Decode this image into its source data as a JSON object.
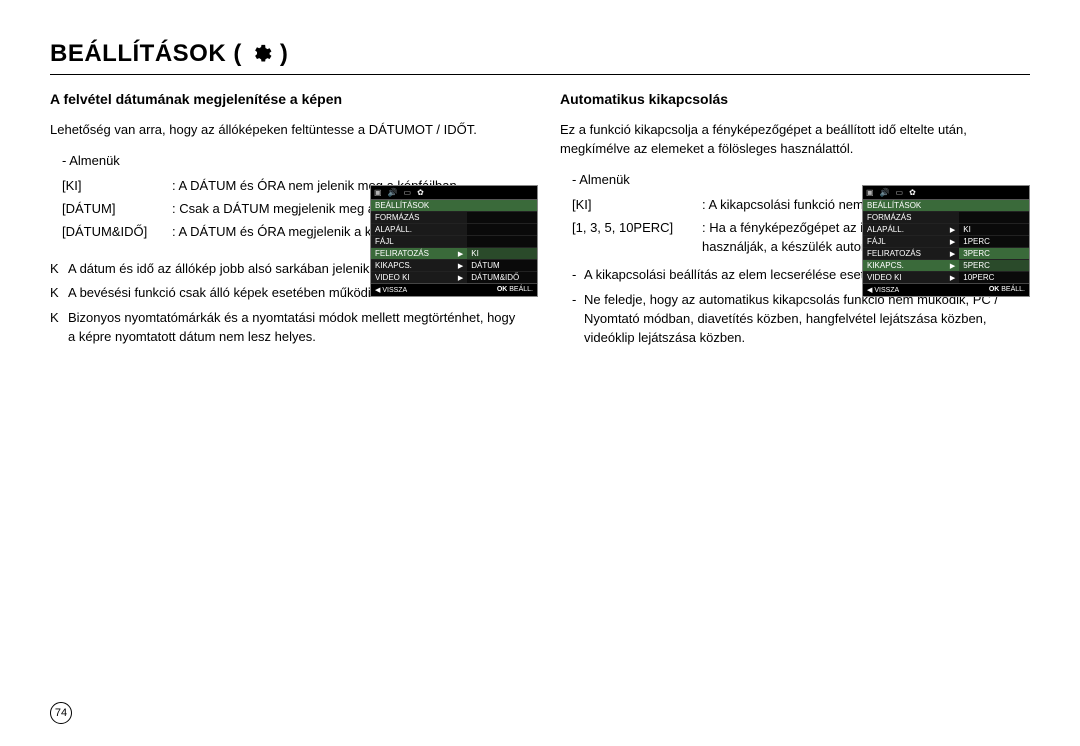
{
  "page": {
    "title": "BEÁLLÍTÁSOK (",
    "title_close": ")",
    "number": "74"
  },
  "left": {
    "heading": "A felvétel dátumának megjelenítése a képen",
    "intro": "Lehetőség van arra, hogy az állóképeken feltüntesse a DÁTUMOT / IDŐT.",
    "submenus_label": "- Almenük",
    "defs": [
      {
        "term": "[KI]",
        "desc": "A DÁTUM és ÓRA nem jelenik meg a képfájlban."
      },
      {
        "term": "[DÁTUM]",
        "desc": "Csak a DÁTUM megjelenik meg a képfájlban."
      },
      {
        "term": "[DÁTUM&IDŐ]",
        "desc": "A DÁTUM és ÓRA megjelenik a képfájlban."
      }
    ],
    "notes": [
      "A dátum és idő az állókép jobb alsó sarkában jelenik meg.",
      "A bevésési funkció csak álló képek esetében működik.",
      "Bizonyos nyomtatómárkák és a nyomtatási módok mellett megtörténhet, hogy a képre nyomtatott dátum nem lesz helyes."
    ],
    "note_marker": "K",
    "lcd": {
      "title": "BEÁLLÍTÁSOK",
      "rows": [
        {
          "l": "FORMÁZÁS",
          "r": "",
          "hl": false,
          "arrow": false
        },
        {
          "l": "ALAPÁLL.",
          "r": "",
          "hl": false,
          "arrow": false
        },
        {
          "l": "FÁJL",
          "r": "",
          "hl": false,
          "arrow": false
        },
        {
          "l": "FELIRATOZÁS",
          "r": "KI",
          "hl": true,
          "arrow": true
        },
        {
          "l": "KIKAPCS.",
          "r": "DÁTUM",
          "hl": false,
          "arrow": true
        },
        {
          "l": "VIDEO KI",
          "r": "DÁTUM&IDŐ",
          "hl": false,
          "arrow": true
        }
      ],
      "footer_left": "◀  VISSZA",
      "footer_right_bold": "OK",
      "footer_right": " BEÁLL."
    }
  },
  "right": {
    "heading": "Automatikus kikapcsolás",
    "intro": "Ez a funkció kikapcsolja a fényképezőgépet a beállított idő eltelte után, megkímélve az elemeket a fölösleges használattól.",
    "submenus_label": "- Almenük",
    "defs": [
      {
        "term": "[KI]",
        "desc": "A kikapcsolási funkció nem működik."
      },
      {
        "term": "[1, 3, 5, 10PERC]",
        "desc": "Ha a fényképezőgépet az itt meghatározott ideig nem használják, a készülék automatikusan kikapcsol."
      }
    ],
    "bullets": [
      "A kikapcsolási beállítás az elem lecserélése esetén is megmarad.",
      "Ne feledje, hogy az automatikus kikapcsolás funkció nem működik, PC / Nyomtató módban, diavetítés közben, hangfelvétel lejátszása közben, videóklip lejátszása közben."
    ],
    "lcd": {
      "title": "BEÁLLÍTÁSOK",
      "rows": [
        {
          "l": "FORMÁZÁS",
          "r": "",
          "hl": false,
          "arrow": false
        },
        {
          "l": "ALAPÁLL.",
          "r": "KI",
          "hl": false,
          "arrow": true
        },
        {
          "l": "FÁJL",
          "r": "1PERC",
          "hl": false,
          "arrow": true
        },
        {
          "l": "FELIRATOZÁS",
          "r": "3PERC",
          "hl": false,
          "hl_r": true,
          "arrow": true
        },
        {
          "l": "KIKAPCS.",
          "r": "5PERC",
          "hl": true,
          "arrow": true
        },
        {
          "l": "VIDEO KI",
          "r": "10PERC",
          "hl": false,
          "arrow": true
        }
      ],
      "footer_left": "◀  VISSZA",
      "footer_right_bold": "OK",
      "footer_right": " BEÁLL."
    }
  }
}
